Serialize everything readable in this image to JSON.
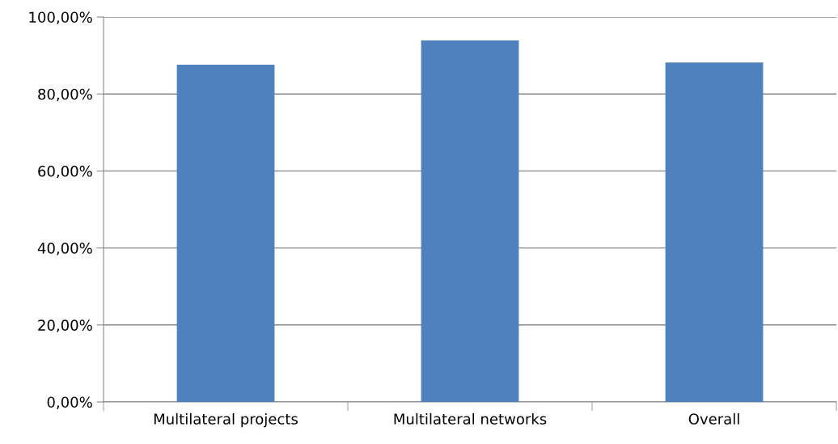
{
  "chart_data": {
    "type": "bar",
    "categories": [
      "Multilateral projects",
      "Multilateral networks",
      "Overall"
    ],
    "values": [
      87.6,
      93.9,
      88.2
    ],
    "color": "#4f81bd",
    "ylim": [
      0,
      100
    ],
    "yticks": [
      {
        "value": 0,
        "label": "0,00%"
      },
      {
        "value": 20,
        "label": "20,00%"
      },
      {
        "value": 40,
        "label": "40,00%"
      },
      {
        "value": 60,
        "label": "60,00%"
      },
      {
        "value": 80,
        "label": "80,00%"
      },
      {
        "value": 100,
        "label": "100,00%"
      }
    ],
    "grid": "y",
    "legend": false
  }
}
